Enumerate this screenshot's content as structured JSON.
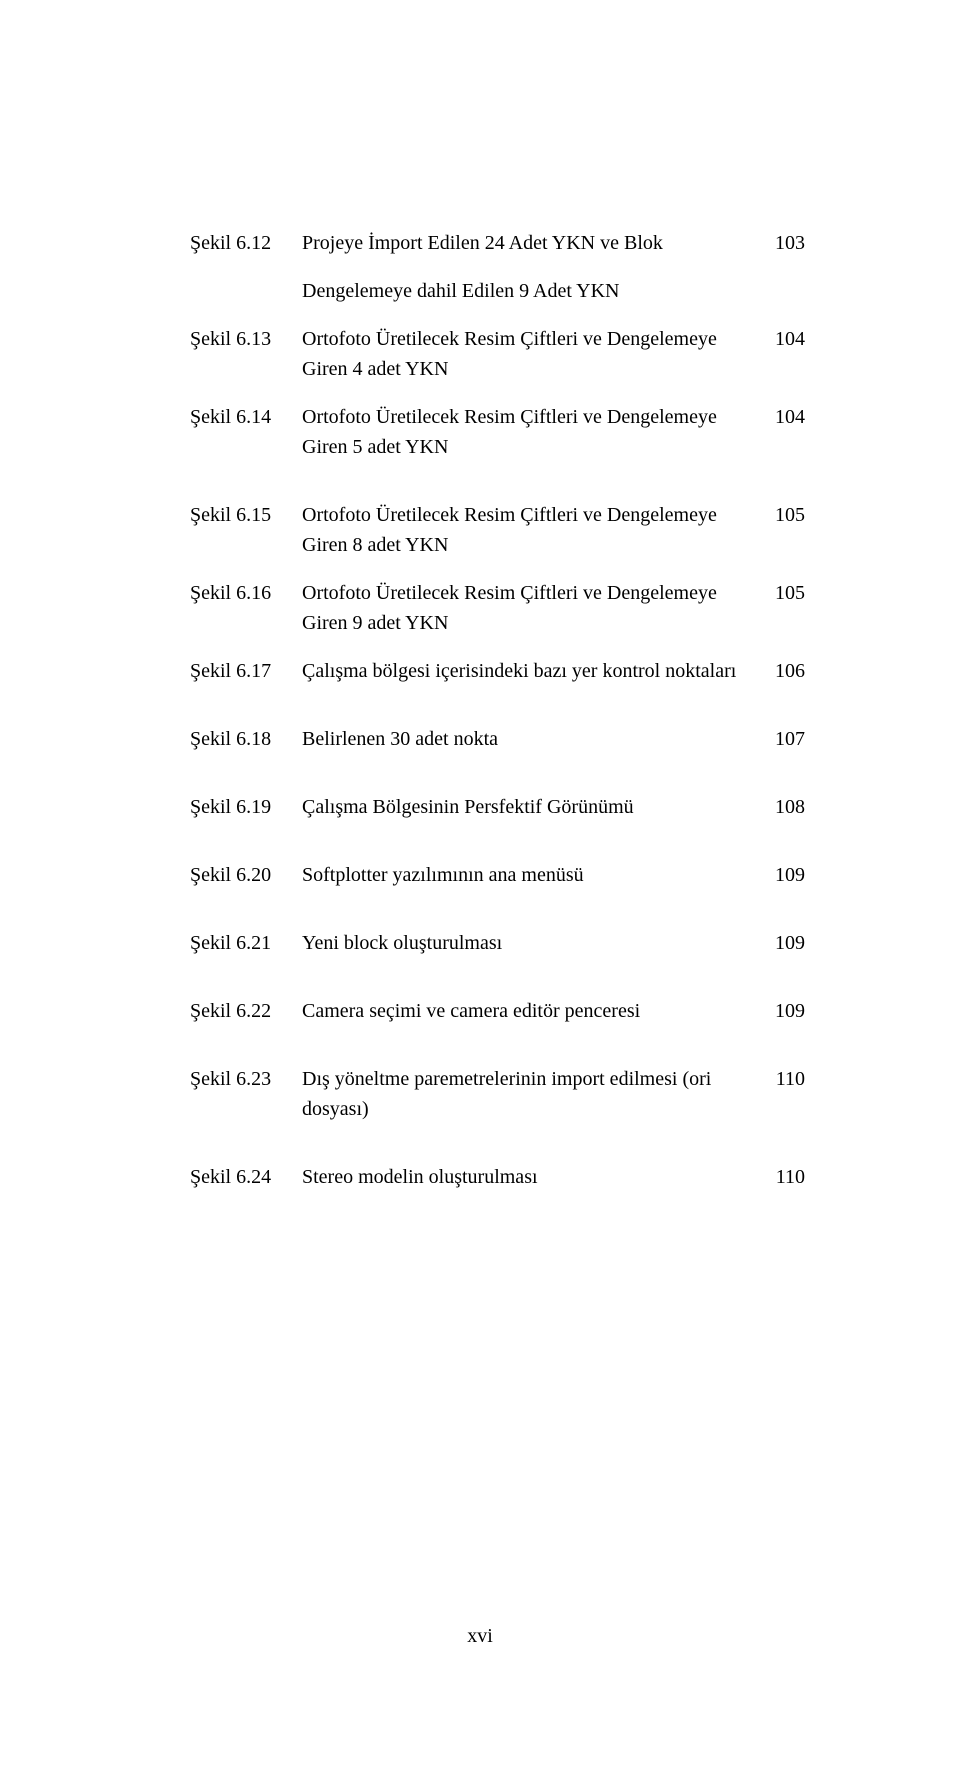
{
  "entries": [
    {
      "label": "Şekil 6.12",
      "desc": "Projeye İmport Edilen 24 Adet YKN ve Blok",
      "page": "103",
      "gap": "gap-sm"
    },
    {
      "label": "",
      "desc": "Dengelemeye dahil Edilen 9 Adet YKN",
      "page": "",
      "gap": "gap-sm"
    },
    {
      "label": "Şekil 6.13",
      "desc": "Ortofoto Üretilecek Resim Çiftleri ve Dengelemeye Giren 4 adet YKN",
      "page": "104",
      "gap": "gap-sm"
    },
    {
      "label": "Şekil 6.14",
      "desc": "Ortofoto Üretilecek Resim Çiftleri ve Dengelemeye Giren 5 adet YKN",
      "page": "104",
      "gap": "gap-lg"
    },
    {
      "label": "Şekil 6.15",
      "desc": "Ortofoto Üretilecek Resim Çiftleri ve Dengelemeye Giren 8 adet YKN",
      "page": "105",
      "gap": "gap-sm"
    },
    {
      "label": "Şekil 6.16",
      "desc": "Ortofoto Üretilecek Resim Çiftleri ve Dengelemeye Giren 9 adet YKN",
      "page": "105",
      "gap": "gap-sm"
    },
    {
      "label": "Şekil 6.17",
      "desc": "Çalışma bölgesi içerisindeki bazı yer kontrol noktaları",
      "page": "106",
      "gap": "gap-lg"
    },
    {
      "label": "Şekil 6.18",
      "desc": "Belirlenen 30 adet nokta",
      "page": "107",
      "gap": "gap-lg"
    },
    {
      "label": "Şekil 6.19",
      "desc": "Çalışma Bölgesinin Persfektif Görünümü",
      "page": "108",
      "gap": "gap-lg"
    },
    {
      "label": "Şekil 6.20",
      "desc": "Softplotter yazılımının ana menüsü",
      "page": "109",
      "gap": "gap-lg"
    },
    {
      "label": "Şekil 6.21",
      "desc": "Yeni block oluşturulması",
      "page": "109",
      "gap": "gap-lg"
    },
    {
      "label": "Şekil 6.22",
      "desc": "Camera seçimi ve camera editör penceresi",
      "page": "109",
      "gap": "gap-lg"
    },
    {
      "label": "Şekil 6.23",
      "desc": "Dış yöneltme paremetrelerinin import edilmesi (ori dosyası)",
      "page": "110",
      "gap": "gap-lg"
    },
    {
      "label": "Şekil 6.24",
      "desc": "Stereo modelin oluşturulması",
      "page": "110",
      "gap": "gap-lg"
    }
  ],
  "footer": "xvi"
}
